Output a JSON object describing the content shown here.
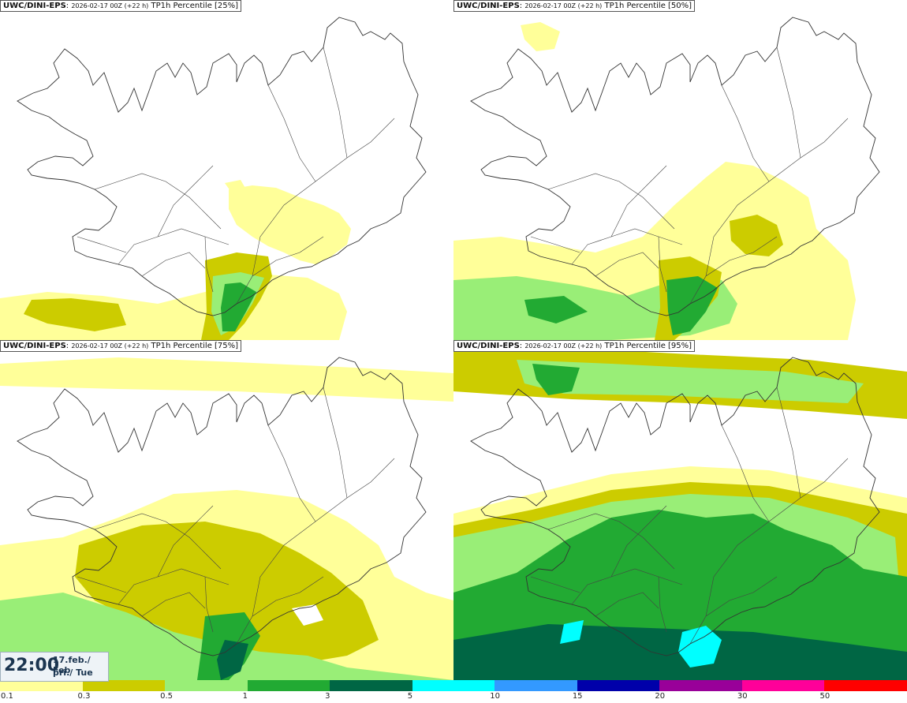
{
  "panels": [
    {
      "model": "UWC/DINI-EPS",
      "run": "2026-02-17 00Z (+22 h)",
      "field": "TP1h Percentile [25%]"
    },
    {
      "model": "UWC/DINI-EPS",
      "run": "2026-02-17 00Z (+22 h)",
      "field": "TP1h Percentile [50%]"
    },
    {
      "model": "UWC/DINI-EPS",
      "run": "2026-02-17 00Z (+22 h)",
      "field": "TP1h Percentile [75%]"
    },
    {
      "model": "UWC/DINI-EPS",
      "run": "2026-02-17 00Z (+22 h)",
      "field": "TP1h Percentile [95%]"
    }
  ],
  "valid_time": {
    "time": "22:00",
    "date_line1": "17.feb./ Feb",
    "date_line2": "þri./ Tue"
  },
  "colorbar": {
    "labels": [
      "0.1",
      "0.3",
      "0.5",
      "1",
      "3",
      "5",
      "10",
      "15",
      "20",
      "30",
      "50"
    ],
    "colors": [
      "#ffff99",
      "#cccc00",
      "#99ee77",
      "#22aa33",
      "#006644",
      "#00ffff",
      "#3399ff",
      "#0000aa",
      "#990099",
      "#ff0099",
      "#ff0000"
    ]
  },
  "colors": {
    "level1": "#ffff99",
    "level2": "#cccc00",
    "level3": "#99ee77",
    "level4": "#22aa33",
    "level5": "#006644",
    "level6": "#00ffff",
    "outline": "#333333"
  }
}
